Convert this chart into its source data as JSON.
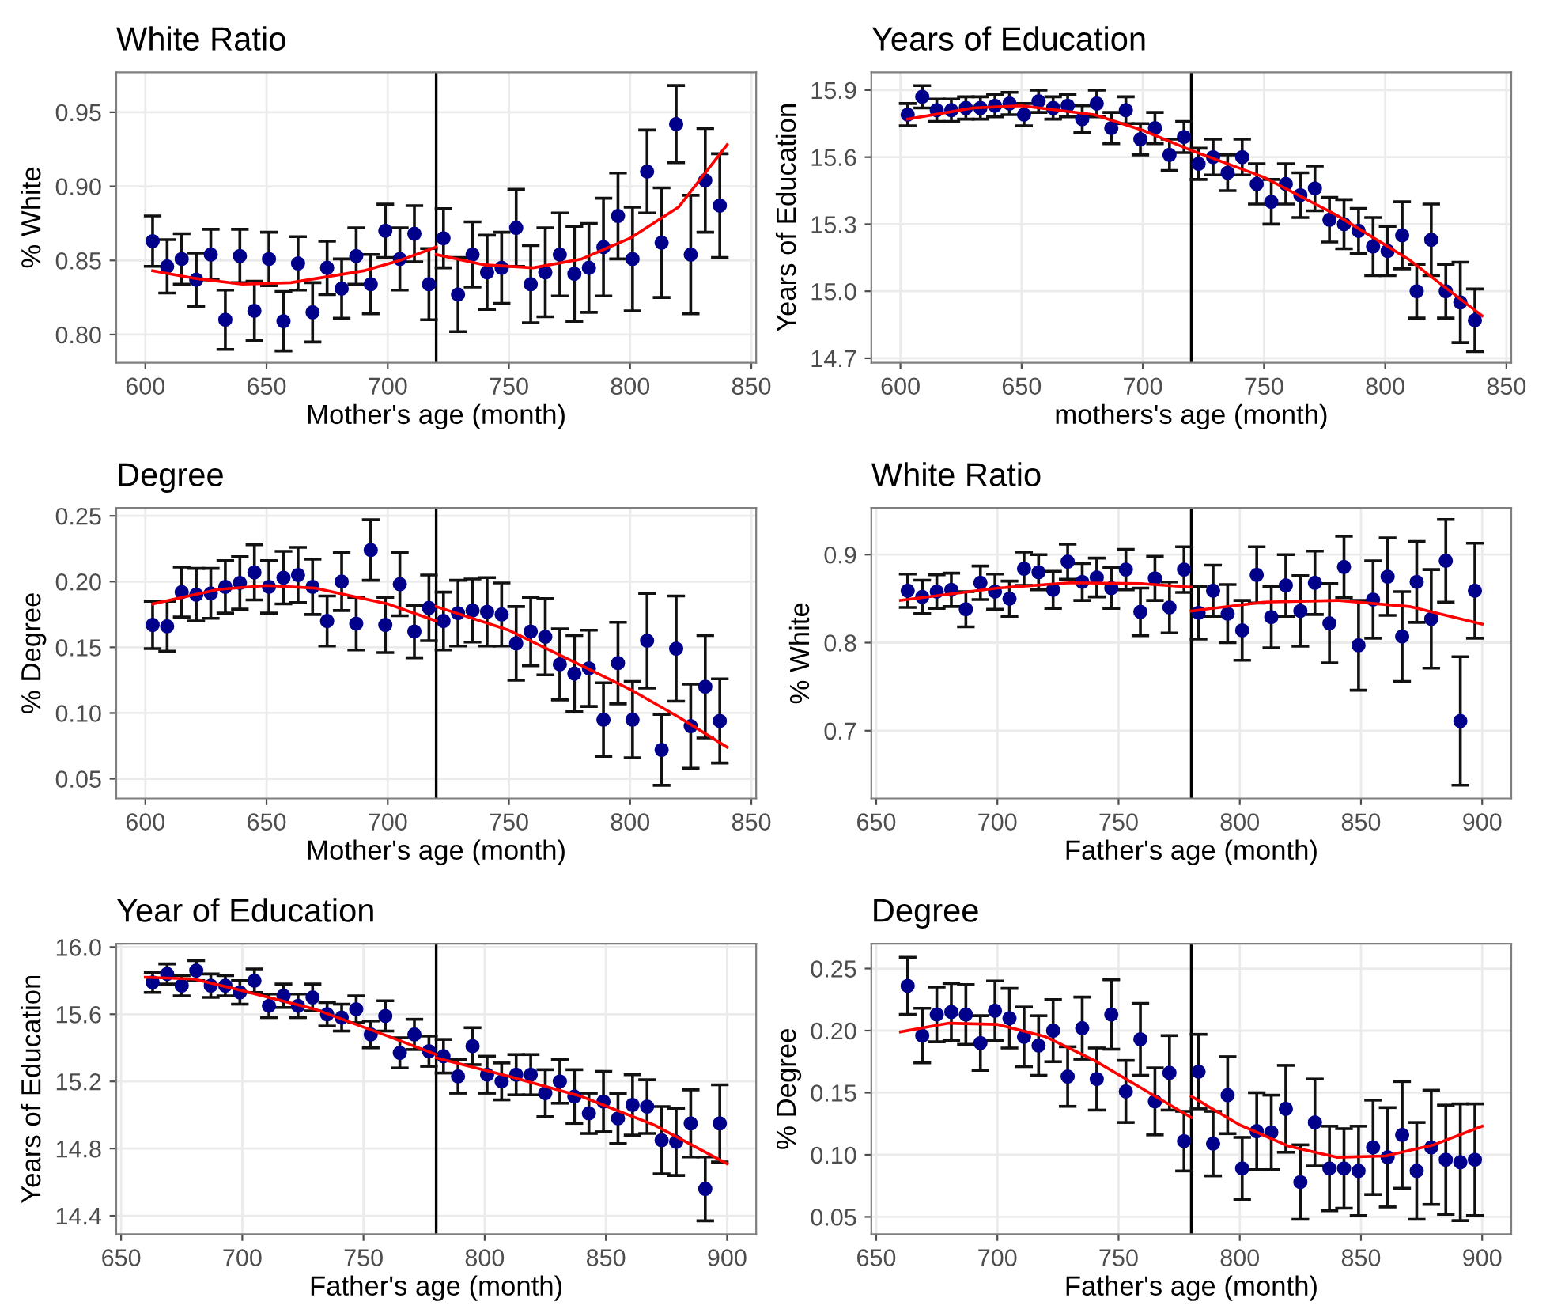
{
  "chart_data": [
    {
      "type": "scatter",
      "title": "White Ratio",
      "xlabel": "Mother's age (month)",
      "ylabel": "% White",
      "xlim": [
        588,
        852
      ],
      "xticks": [
        600,
        650,
        700,
        750,
        800,
        850
      ],
      "ylim": [
        0.781,
        0.977
      ],
      "yticks": [
        {
          "value": 0.8,
          "label": "0.80"
        },
        0.85,
        {
          "value": 0.9,
          "label": "0.90"
        },
        0.95
      ],
      "grid": true,
      "ref_lines": [
        {
          "axis": "x",
          "value": 720,
          "color": "#000000"
        }
      ],
      "series": [
        {
          "type": "scatter",
          "marker": "circle",
          "color": "#00008b",
          "x": [
            603,
            609,
            615,
            621,
            627,
            633,
            639,
            645,
            651,
            657,
            663,
            669,
            675,
            681,
            687,
            693,
            699,
            705,
            711,
            717,
            723,
            729,
            735,
            741,
            747,
            753,
            759,
            765,
            771,
            777,
            783,
            789,
            795,
            801,
            807,
            813,
            819,
            825,
            831,
            837
          ],
          "values": [
            0.863,
            0.846,
            0.851,
            0.837,
            0.854,
            0.81,
            0.853,
            0.816,
            0.851,
            0.809,
            0.848,
            0.815,
            0.845,
            0.831,
            0.853,
            0.834,
            0.87,
            0.851,
            0.868,
            0.834,
            0.865,
            0.827,
            0.854,
            0.842,
            0.845,
            0.872,
            0.834,
            0.842,
            0.854,
            0.841,
            0.845,
            0.859,
            0.88,
            0.851,
            0.91,
            0.862,
            0.942,
            0.854,
            0.904,
            0.887
          ],
          "errors": [
            0.017,
            0.018,
            0.017,
            0.018,
            0.017,
            0.02,
            0.018,
            0.02,
            0.018,
            0.02,
            0.018,
            0.02,
            0.018,
            0.02,
            0.019,
            0.02,
            0.018,
            0.021,
            0.019,
            0.024,
            0.02,
            0.025,
            0.022,
            0.025,
            0.024,
            0.026,
            0.026,
            0.03,
            0.028,
            0.032,
            0.03,
            0.033,
            0.029,
            0.035,
            0.028,
            0.037,
            0.026,
            0.04,
            0.035,
            0.035
          ]
        },
        {
          "type": "line",
          "color": "#ff0000",
          "x": [
            603,
            620,
            640,
            660,
            690,
            705,
            720
          ],
          "values": [
            0.843,
            0.838,
            0.834,
            0.835,
            0.843,
            0.85,
            0.859
          ]
        },
        {
          "type": "line",
          "color": "#ff0000",
          "x": [
            720,
            740,
            760,
            780,
            800,
            820,
            840
          ],
          "values": [
            0.854,
            0.847,
            0.845,
            0.851,
            0.865,
            0.886,
            0.928
          ]
        }
      ]
    },
    {
      "type": "scatter",
      "title": "Years of Education",
      "xlabel": "mothers's age (month)",
      "ylabel": "Years of Education",
      "xlim": [
        588,
        852
      ],
      "xticks": [
        600,
        650,
        700,
        750,
        800,
        850
      ],
      "ylim": [
        14.68,
        15.98
      ],
      "yticks": [
        14.7,
        {
          "value": 15,
          "label": "15.0"
        },
        15.3,
        15.6,
        15.9
      ],
      "grid": true,
      "ref_lines": [
        {
          "axis": "x",
          "value": 720,
          "color": "#000000"
        }
      ],
      "series": [
        {
          "type": "scatter",
          "marker": "circle",
          "color": "#00008b",
          "x": [
            603,
            609,
            615,
            621,
            627,
            633,
            639,
            645,
            651,
            657,
            663,
            669,
            675,
            681,
            687,
            693,
            699,
            705,
            711,
            717,
            723,
            729,
            735,
            741,
            747,
            753,
            759,
            765,
            771,
            777,
            783,
            789,
            795,
            801,
            807,
            813,
            819,
            825,
            831,
            837
          ],
          "values": [
            15.79,
            15.87,
            15.81,
            15.81,
            15.82,
            15.82,
            15.83,
            15.84,
            15.79,
            15.85,
            15.82,
            15.83,
            15.77,
            15.84,
            15.73,
            15.81,
            15.68,
            15.73,
            15.61,
            15.69,
            15.57,
            15.6,
            15.53,
            15.6,
            15.48,
            15.4,
            15.48,
            15.43,
            15.46,
            15.32,
            15.3,
            15.27,
            15.2,
            15.18,
            15.25,
            15.0,
            15.23,
            15.0,
            14.95,
            14.87
          ],
          "errors": [
            0.05,
            0.05,
            0.05,
            0.05,
            0.05,
            0.05,
            0.05,
            0.05,
            0.05,
            0.05,
            0.05,
            0.05,
            0.06,
            0.06,
            0.07,
            0.06,
            0.07,
            0.07,
            0.07,
            0.07,
            0.07,
            0.08,
            0.08,
            0.08,
            0.09,
            0.1,
            0.09,
            0.1,
            0.1,
            0.1,
            0.11,
            0.1,
            0.13,
            0.11,
            0.15,
            0.12,
            0.16,
            0.12,
            0.18,
            0.14
          ]
        },
        {
          "type": "line",
          "color": "#ff0000",
          "x": [
            603,
            630,
            650,
            680,
            700,
            720,
            750,
            780,
            810,
            840
          ],
          "values": [
            15.77,
            15.82,
            15.83,
            15.79,
            15.72,
            15.63,
            15.51,
            15.34,
            15.14,
            14.89
          ]
        }
      ]
    },
    {
      "type": "scatter",
      "title": "Degree",
      "xlabel": "Mother's age (month)",
      "ylabel": "% Degree",
      "xlim": [
        588,
        852
      ],
      "xticks": [
        600,
        650,
        700,
        750,
        800,
        850
      ],
      "ylim": [
        0.035,
        0.256
      ],
      "yticks": [
        0.05,
        {
          "value": 0.1,
          "label": "0.10"
        },
        0.15,
        {
          "value": 0.2,
          "label": "0.20"
        },
        0.25
      ],
      "grid": true,
      "ref_lines": [
        {
          "axis": "x",
          "value": 720,
          "color": "#000000"
        }
      ],
      "series": [
        {
          "type": "scatter",
          "marker": "circle",
          "color": "#00008b",
          "x": [
            603,
            609,
            615,
            621,
            627,
            633,
            639,
            645,
            651,
            657,
            663,
            669,
            675,
            681,
            687,
            693,
            699,
            705,
            711,
            717,
            723,
            729,
            735,
            741,
            747,
            753,
            759,
            765,
            771,
            777,
            783,
            789,
            795,
            801,
            807,
            813,
            819,
            825,
            831,
            837
          ],
          "values": [
            0.167,
            0.166,
            0.192,
            0.19,
            0.191,
            0.196,
            0.199,
            0.207,
            0.196,
            0.203,
            0.205,
            0.196,
            0.17,
            0.2,
            0.168,
            0.224,
            0.167,
            0.198,
            0.162,
            0.18,
            0.17,
            0.176,
            0.178,
            0.177,
            0.175,
            0.153,
            0.162,
            0.158,
            0.137,
            0.13,
            0.134,
            0.095,
            0.138,
            0.095,
            0.155,
            0.072,
            0.149,
            0.09,
            0.12,
            0.094
          ],
          "errors": [
            0.018,
            0.019,
            0.019,
            0.02,
            0.019,
            0.02,
            0.02,
            0.021,
            0.02,
            0.02,
            0.021,
            0.021,
            0.019,
            0.022,
            0.02,
            0.023,
            0.021,
            0.024,
            0.02,
            0.025,
            0.022,
            0.025,
            0.024,
            0.026,
            0.024,
            0.028,
            0.026,
            0.029,
            0.027,
            0.029,
            0.029,
            0.028,
            0.031,
            0.029,
            0.036,
            0.027,
            0.04,
            0.032,
            0.039,
            0.032
          ]
        },
        {
          "type": "line",
          "color": "#ff0000",
          "x": [
            603,
            630,
            650,
            670,
            700,
            720
          ],
          "values": [
            0.183,
            0.194,
            0.197,
            0.195,
            0.183,
            0.17
          ]
        },
        {
          "type": "line",
          "color": "#ff0000",
          "x": [
            720,
            750,
            780,
            800,
            820,
            840
          ],
          "values": [
            0.181,
            0.163,
            0.136,
            0.118,
            0.097,
            0.074
          ]
        }
      ]
    },
    {
      "type": "scatter",
      "title": "White Ratio",
      "xlabel": "Father's age (month)",
      "ylabel": "% White",
      "xlim": [
        648,
        912
      ],
      "xticks": [
        650,
        700,
        750,
        800,
        850,
        900
      ],
      "ylim": [
        0.623,
        0.953
      ],
      "yticks": [
        0.7,
        0.8,
        0.9
      ],
      "grid": true,
      "ref_lines": [
        {
          "axis": "x",
          "value": 780,
          "color": "#000000"
        }
      ],
      "series": [
        {
          "type": "scatter",
          "marker": "circle",
          "color": "#00008b",
          "x": [
            663,
            669,
            675,
            681,
            687,
            693,
            699,
            705,
            711,
            717,
            723,
            729,
            735,
            741,
            747,
            753,
            759,
            765,
            771,
            777,
            783,
            789,
            795,
            801,
            807,
            813,
            819,
            825,
            831,
            837,
            843,
            849,
            855,
            861,
            867,
            873,
            879,
            885,
            891,
            897
          ],
          "values": [
            0.859,
            0.852,
            0.858,
            0.86,
            0.838,
            0.868,
            0.858,
            0.85,
            0.884,
            0.88,
            0.86,
            0.892,
            0.869,
            0.874,
            0.862,
            0.883,
            0.835,
            0.873,
            0.84,
            0.883,
            0.834,
            0.859,
            0.833,
            0.814,
            0.877,
            0.829,
            0.865,
            0.836,
            0.868,
            0.822,
            0.886,
            0.797,
            0.849,
            0.875,
            0.807,
            0.869,
            0.827,
            0.893,
            0.711,
            0.859
          ],
          "errors": [
            0.019,
            0.019,
            0.019,
            0.019,
            0.02,
            0.019,
            0.02,
            0.02,
            0.019,
            0.02,
            0.021,
            0.02,
            0.021,
            0.022,
            0.023,
            0.023,
            0.027,
            0.025,
            0.029,
            0.026,
            0.03,
            0.029,
            0.033,
            0.034,
            0.032,
            0.035,
            0.035,
            0.04,
            0.036,
            0.045,
            0.035,
            0.051,
            0.044,
            0.044,
            0.051,
            0.046,
            0.056,
            0.047,
            0.073,
            0.054
          ]
        },
        {
          "type": "line",
          "color": "#ff0000",
          "x": [
            660,
            700,
            730,
            760,
            780
          ],
          "values": [
            0.848,
            0.862,
            0.868,
            0.867,
            0.863
          ]
        },
        {
          "type": "line",
          "color": "#ff0000",
          "x": [
            780,
            810,
            840,
            870,
            900
          ],
          "values": [
            0.836,
            0.846,
            0.848,
            0.841,
            0.821
          ]
        }
      ]
    },
    {
      "type": "scatter",
      "title": "Year of Education",
      "xlabel": "Father's age (month)",
      "ylabel": "Years of Education",
      "xlim": [
        648,
        912
      ],
      "xticks": [
        650,
        700,
        750,
        800,
        850,
        900
      ],
      "ylim": [
        14.29,
        16.02
      ],
      "yticks": [
        14.4,
        14.8,
        15.2,
        15.6,
        {
          "value": 16,
          "label": "16.0"
        }
      ],
      "grid": true,
      "ref_lines": [
        {
          "axis": "x",
          "value": 780,
          "color": "#000000"
        }
      ],
      "series": [
        {
          "type": "scatter",
          "marker": "circle",
          "color": "#00008b",
          "x": [
            663,
            669,
            675,
            681,
            687,
            693,
            699,
            705,
            711,
            717,
            723,
            729,
            735,
            741,
            747,
            753,
            759,
            765,
            771,
            777,
            783,
            789,
            795,
            801,
            807,
            813,
            819,
            825,
            831,
            837,
            843,
            849,
            855,
            861,
            867,
            873,
            879,
            885,
            891,
            897
          ],
          "values": [
            15.79,
            15.84,
            15.77,
            15.86,
            15.77,
            15.77,
            15.73,
            15.8,
            15.65,
            15.71,
            15.65,
            15.7,
            15.6,
            15.58,
            15.63,
            15.48,
            15.59,
            15.37,
            15.48,
            15.38,
            15.35,
            15.23,
            15.41,
            15.24,
            15.2,
            15.24,
            15.24,
            15.13,
            15.2,
            15.11,
            15.01,
            15.08,
            14.98,
            15.06,
            15.05,
            14.85,
            14.84,
            14.95,
            14.56,
            14.95
          ],
          "errors": [
            0.06,
            0.06,
            0.06,
            0.06,
            0.07,
            0.06,
            0.07,
            0.07,
            0.07,
            0.07,
            0.07,
            0.08,
            0.07,
            0.08,
            0.08,
            0.08,
            0.09,
            0.09,
            0.09,
            0.09,
            0.1,
            0.1,
            0.11,
            0.11,
            0.11,
            0.12,
            0.12,
            0.14,
            0.13,
            0.16,
            0.12,
            0.18,
            0.15,
            0.18,
            0.16,
            0.2,
            0.2,
            0.2,
            0.19,
            0.23
          ]
        },
        {
          "type": "line",
          "color": "#ff0000",
          "x": [
            660,
            680,
            700,
            730,
            760,
            780
          ],
          "values": [
            15.82,
            15.81,
            15.74,
            15.63,
            15.47,
            15.36
          ]
        },
        {
          "type": "line",
          "color": "#ff0000",
          "x": [
            780,
            810,
            840,
            870,
            900
          ],
          "values": [
            15.34,
            15.23,
            15.11,
            14.94,
            14.71
          ]
        }
      ]
    },
    {
      "type": "scatter",
      "title": "Degree",
      "xlabel": "Father's age (month)",
      "ylabel": "% Degree",
      "xlim": [
        648,
        912
      ],
      "xticks": [
        650,
        700,
        750,
        800,
        850,
        900
      ],
      "ylim": [
        0.036,
        0.27
      ],
      "yticks": [
        0.05,
        {
          "value": 0.1,
          "label": "0.10"
        },
        0.15,
        {
          "value": 0.2,
          "label": "0.20"
        },
        0.25
      ],
      "grid": true,
      "ref_lines": [
        {
          "axis": "x",
          "value": 780,
          "color": "#000000"
        }
      ],
      "series": [
        {
          "type": "scatter",
          "marker": "circle",
          "color": "#00008b",
          "x": [
            663,
            669,
            675,
            681,
            687,
            693,
            699,
            705,
            711,
            717,
            723,
            729,
            735,
            741,
            747,
            753,
            759,
            765,
            771,
            777,
            783,
            789,
            795,
            801,
            807,
            813,
            819,
            825,
            831,
            837,
            843,
            849,
            855,
            861,
            867,
            873,
            879,
            885,
            891,
            897
          ],
          "values": [
            0.236,
            0.196,
            0.213,
            0.215,
            0.213,
            0.19,
            0.216,
            0.21,
            0.195,
            0.188,
            0.2,
            0.163,
            0.202,
            0.161,
            0.213,
            0.151,
            0.193,
            0.143,
            0.166,
            0.111,
            0.167,
            0.109,
            0.148,
            0.089,
            0.119,
            0.118,
            0.137,
            0.078,
            0.126,
            0.089,
            0.089,
            0.087,
            0.106,
            0.098,
            0.116,
            0.087,
            0.106,
            0.096,
            0.094,
            0.096
          ],
          "errors": [
            0.023,
            0.022,
            0.022,
            0.023,
            0.024,
            0.022,
            0.024,
            0.024,
            0.024,
            0.024,
            0.025,
            0.024,
            0.025,
            0.025,
            0.028,
            0.025,
            0.029,
            0.027,
            0.03,
            0.024,
            0.03,
            0.026,
            0.031,
            0.025,
            0.031,
            0.03,
            0.035,
            0.03,
            0.035,
            0.034,
            0.032,
            0.036,
            0.038,
            0.04,
            0.043,
            0.039,
            0.046,
            0.044,
            0.047,
            0.045
          ]
        },
        {
          "type": "line",
          "color": "#ff0000",
          "x": [
            660,
            680,
            700,
            720,
            740,
            760,
            780
          ],
          "values": [
            0.199,
            0.206,
            0.205,
            0.195,
            0.176,
            0.153,
            0.13
          ]
        },
        {
          "type": "line",
          "color": "#ff0000",
          "x": [
            780,
            800,
            820,
            840,
            860,
            880,
            900
          ],
          "values": [
            0.147,
            0.124,
            0.107,
            0.098,
            0.099,
            0.108,
            0.123
          ]
        }
      ]
    }
  ]
}
